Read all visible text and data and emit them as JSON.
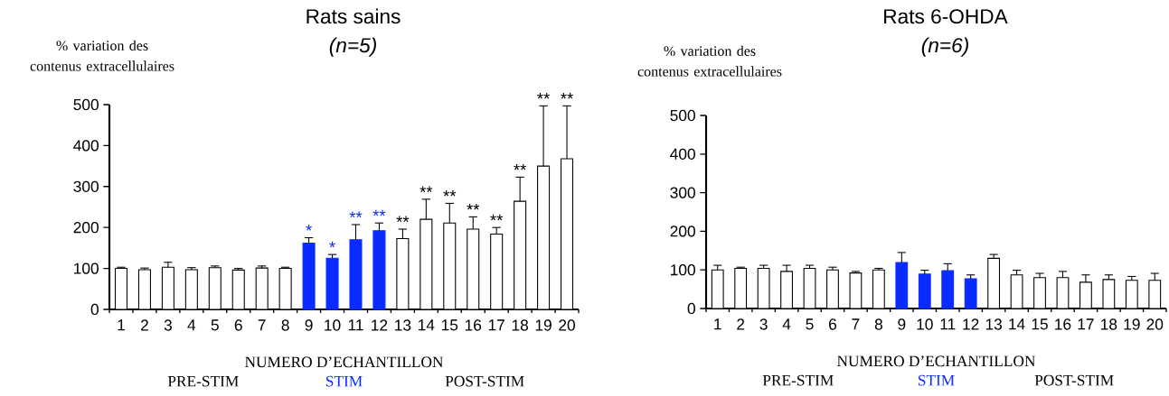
{
  "chart_data": [
    {
      "type": "bar",
      "title": "Rats sains",
      "subtitle": "(n=5)",
      "ylabel": "% variation des contenus extracellulaires",
      "xlabel": "NUMERO D’ECHANTILLON",
      "categories": [
        "1",
        "2",
        "3",
        "4",
        "5",
        "6",
        "7",
        "8",
        "9",
        "10",
        "11",
        "12",
        "13",
        "14",
        "15",
        "16",
        "17",
        "18",
        "19",
        "20"
      ],
      "values": [
        100,
        97,
        103,
        97,
        102,
        96,
        101,
        100,
        162,
        125,
        170,
        192,
        173,
        220,
        211,
        196,
        184,
        264,
        350,
        368
      ],
      "errors": [
        [
          100,
          103
        ],
        [
          97,
          101
        ],
        [
          103,
          115
        ],
        [
          97,
          102
        ],
        [
          102,
          106
        ],
        [
          96,
          100
        ],
        [
          101,
          106
        ],
        [
          100,
          103
        ],
        [
          162,
          175
        ],
        [
          125,
          134
        ],
        [
          170,
          207
        ],
        [
          192,
          211
        ],
        [
          173,
          196
        ],
        [
          220,
          269
        ],
        [
          211,
          259
        ],
        [
          196,
          226
        ],
        [
          184,
          200
        ],
        [
          264,
          323
        ],
        [
          350,
          497
        ],
        [
          368,
          497
        ]
      ],
      "colors": [
        "#ffffff",
        "#ffffff",
        "#ffffff",
        "#ffffff",
        "#ffffff",
        "#ffffff",
        "#ffffff",
        "#ffffff",
        "#0a2bff",
        "#0a2bff",
        "#0a2bff",
        "#0a2bff",
        "#ffffff",
        "#ffffff",
        "#ffffff",
        "#ffffff",
        "#ffffff",
        "#ffffff",
        "#ffffff",
        "#ffffff"
      ],
      "ylim": [
        0,
        500
      ],
      "yticks": [
        0,
        100,
        200,
        300,
        400,
        500
      ],
      "annotations": [
        {
          "text": "*",
          "x": "9",
          "y": 175
        },
        {
          "text": "*",
          "x": "10",
          "y": 134
        },
        {
          "text": "**",
          "x": "11",
          "y": 207
        },
        {
          "text": "**",
          "x": "12",
          "y": 211
        },
        {
          "text": "**",
          "x": "13",
          "y": 196
        },
        {
          "text": "**",
          "x": "14",
          "y": 269
        },
        {
          "text": "**",
          "x": "15",
          "y": 259
        },
        {
          "text": "**",
          "x": "16",
          "y": 226
        },
        {
          "text": "**",
          "x": "17",
          "y": 200
        },
        {
          "text": "**",
          "x": "18",
          "y": 323
        },
        {
          "text": "**",
          "x": "19",
          "y": 497
        },
        {
          "text": "**",
          "x": "20",
          "y": 497
        },
        "PRE-STIM",
        "STIM",
        "POST-STIM"
      ]
    },
    {
      "type": "bar",
      "title": "Rats 6-OHDA",
      "subtitle": "(n=6)",
      "ylabel": "% variation des contenus extracellulaires",
      "xlabel": "NUMERO D’ECHANTILLON",
      "categories": [
        "1",
        "2",
        "3",
        "4",
        "5",
        "6",
        "7",
        "8",
        "9",
        "10",
        "11",
        "12",
        "13",
        "14",
        "15",
        "16",
        "17",
        "18",
        "19",
        "20"
      ],
      "values": [
        100,
        104,
        104,
        96,
        104,
        100,
        92,
        100,
        119,
        89,
        98,
        77,
        130,
        87,
        80,
        80,
        68,
        75,
        73,
        73
      ],
      "errors": [
        [
          100,
          112
        ],
        [
          104,
          107
        ],
        [
          104,
          112
        ],
        [
          96,
          112
        ],
        [
          104,
          112
        ],
        [
          100,
          107
        ],
        [
          92,
          96
        ],
        [
          100,
          104
        ],
        [
          119,
          145
        ],
        [
          89,
          99
        ],
        [
          98,
          116
        ],
        [
          77,
          87
        ],
        [
          130,
          140
        ],
        [
          87,
          99
        ],
        [
          80,
          91
        ],
        [
          80,
          96
        ],
        [
          68,
          87
        ],
        [
          75,
          87
        ],
        [
          73,
          83
        ],
        [
          73,
          91
        ]
      ],
      "colors": [
        "#ffffff",
        "#ffffff",
        "#ffffff",
        "#ffffff",
        "#ffffff",
        "#ffffff",
        "#ffffff",
        "#ffffff",
        "#0a2bff",
        "#0a2bff",
        "#0a2bff",
        "#0a2bff",
        "#ffffff",
        "#ffffff",
        "#ffffff",
        "#ffffff",
        "#ffffff",
        "#ffffff",
        "#ffffff",
        "#ffffff"
      ],
      "ylim": [
        0,
        500
      ],
      "yticks": [
        0,
        100,
        200,
        300,
        400,
        500
      ],
      "annotations": [
        "PRE-STIM",
        "STIM",
        "POST-STIM"
      ]
    }
  ]
}
